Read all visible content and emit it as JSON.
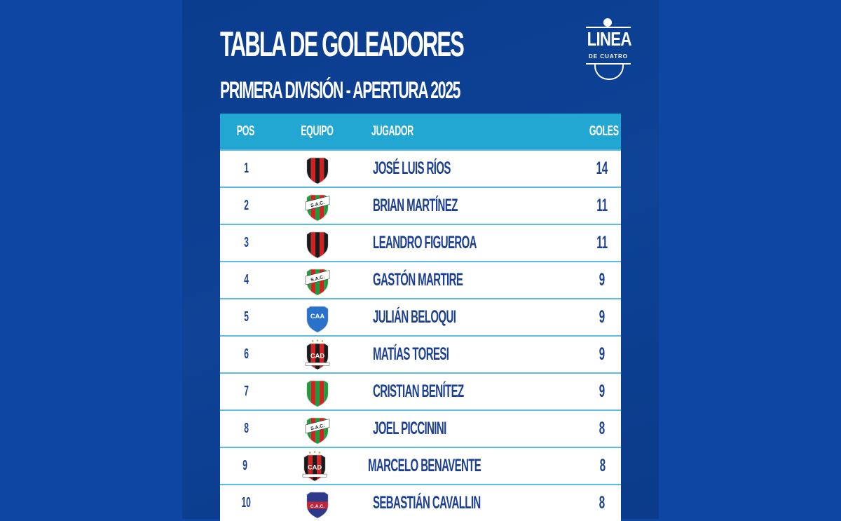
{
  "header": {
    "title": "TABLA DE GOLEADORES",
    "subtitle": "PRIMERA DIVISIÓN - APERTURA 2025"
  },
  "logo": {
    "word": "LINEA",
    "sub": "DE CUATRO"
  },
  "table": {
    "columns": [
      "POS",
      "EQUIPO",
      "JUGADOR",
      "GOLES"
    ],
    "rows": [
      {
        "pos": "1",
        "crest": "red-black-stripes",
        "player": "JOSÉ LUIS RÍOS",
        "goals": "14"
      },
      {
        "pos": "2",
        "crest": "sac",
        "crest_text": "S.A.C.",
        "player": "BRIAN MARTÍNEZ",
        "goals": "11"
      },
      {
        "pos": "3",
        "crest": "red-black-stripes",
        "player": "LEANDRO FIGUEROA",
        "goals": "11"
      },
      {
        "pos": "4",
        "crest": "sac",
        "crest_text": "S.A.C.",
        "player": "GASTÓN MARTIRE",
        "goals": "9"
      },
      {
        "pos": "5",
        "crest": "caa",
        "crest_text": "CAA",
        "player": "JULIÁN BELOQUI",
        "goals": "9"
      },
      {
        "pos": "6",
        "crest": "cad",
        "crest_text": "CAD",
        "player": "MATÍAS TORESI",
        "goals": "9"
      },
      {
        "pos": "7",
        "crest": "green-red-stripes",
        "player": "CRISTIAN BENÍTEZ",
        "goals": "9"
      },
      {
        "pos": "8",
        "crest": "sac",
        "crest_text": "S.A.C.",
        "player": "JOEL PICCININI",
        "goals": "8"
      },
      {
        "pos": "9",
        "crest": "cad",
        "crest_text": "CAD",
        "player": "MARCELO BENAVENTE",
        "goals": "8"
      },
      {
        "pos": "10",
        "crest": "cac",
        "crest_text": "C.A.C.",
        "player": "SEBASTIÁN CAVALLIN",
        "goals": "8"
      }
    ]
  },
  "colors": {
    "background": "#0e47a3",
    "panel": "#0d4296",
    "header": "#22a7d2",
    "text": "#1b3f91"
  }
}
